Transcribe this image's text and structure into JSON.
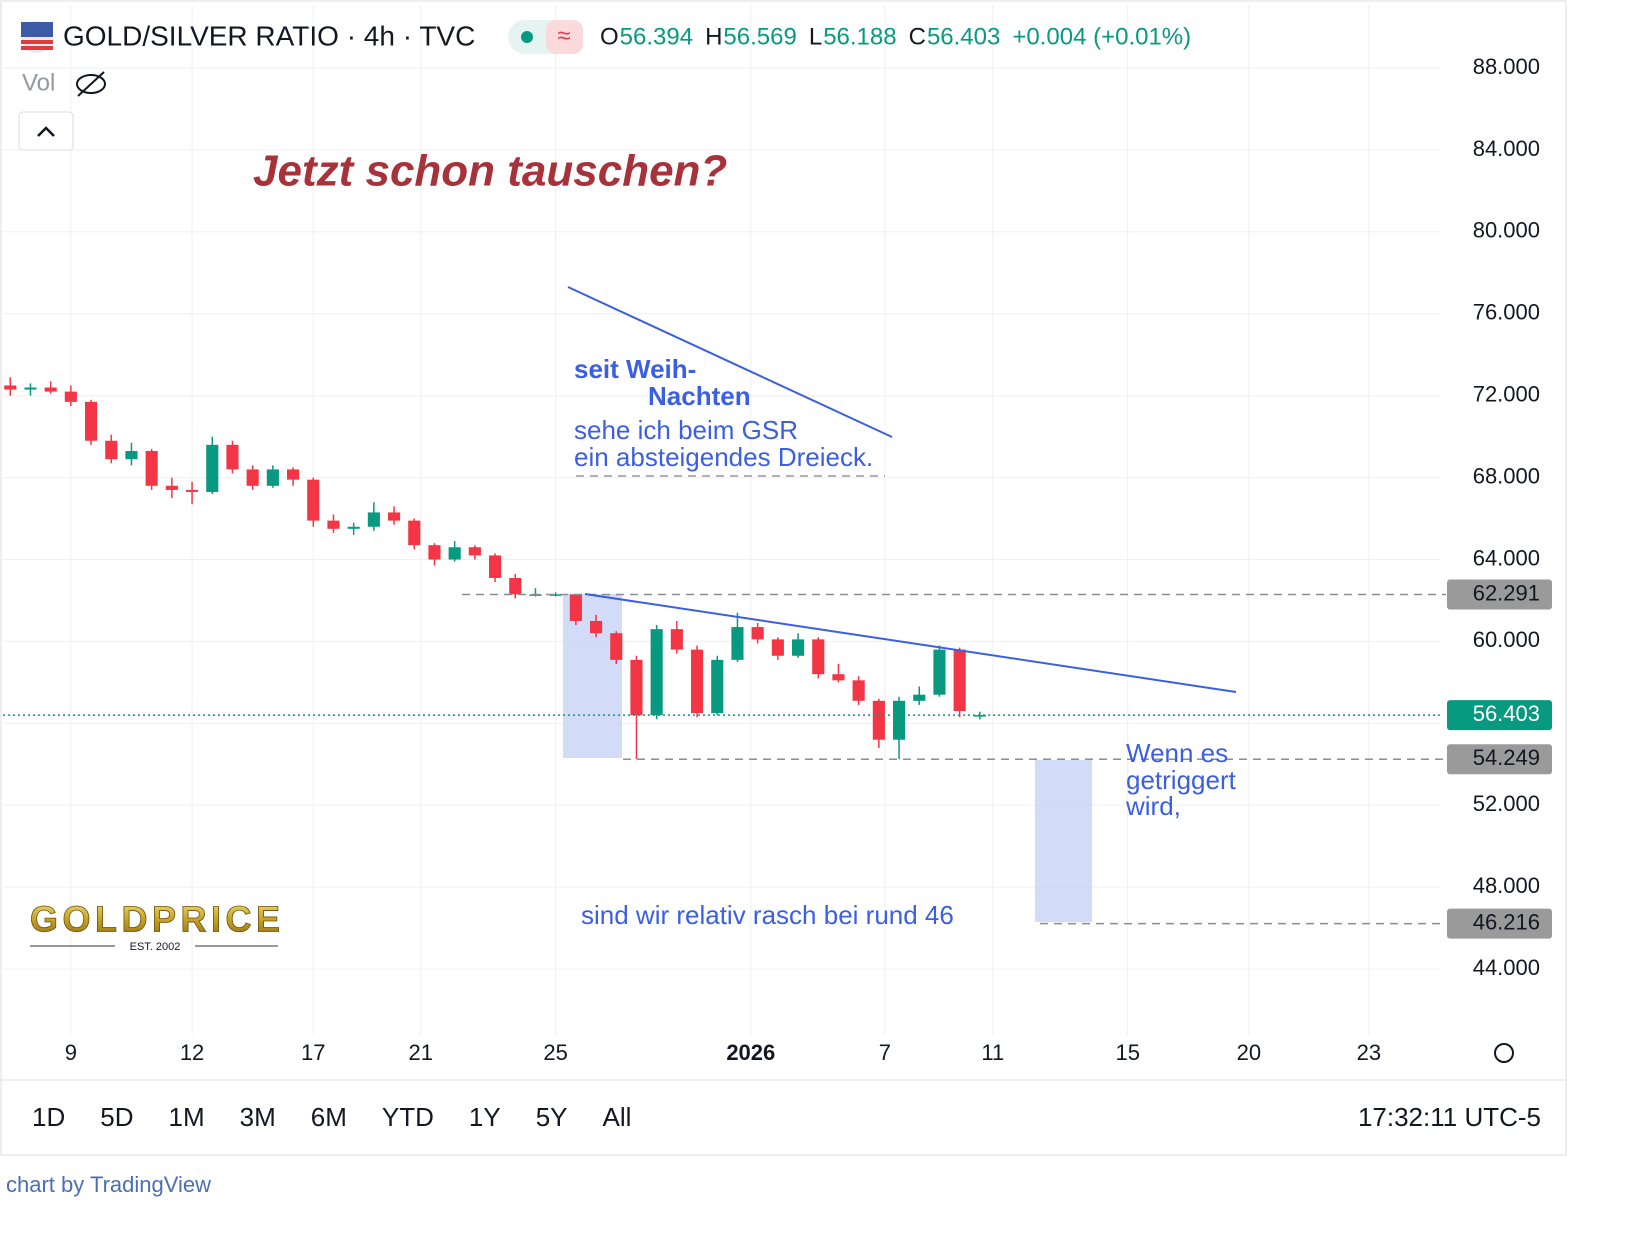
{
  "chart_data": {
    "type": "candlestick",
    "title": "GOLD/SILVER RATIO · 4h · TVC",
    "ohlc_labels": [
      "O",
      "H",
      "L",
      "C"
    ],
    "change": "+0.004 (+0.01%)",
    "volume_label": "Vol",
    "up_color": "#089981",
    "down_color": "#f23645",
    "x": [
      -1.5,
      -1,
      -0.5,
      0,
      0.5,
      1,
      1.5,
      2,
      2.5,
      3,
      3.5,
      4,
      4.5,
      5,
      5.5,
      6,
      6.5,
      7,
      7.5,
      8,
      8.5,
      9,
      9.5,
      10,
      10.5,
      11,
      11.5,
      12,
      12.5,
      13,
      13.5,
      14,
      14.5,
      15,
      15.5,
      16,
      16.5,
      17,
      17.5,
      18,
      18.5,
      19,
      19.5,
      20,
      20.5,
      21,
      21.5,
      22,
      22.5
    ],
    "open": [
      72.5,
      72.3,
      72.4,
      72.2,
      71.7,
      69.8,
      68.9,
      69.3,
      67.6,
      67.4,
      67.3,
      69.6,
      68.4,
      67.6,
      68.4,
      67.9,
      65.9,
      65.5,
      65.6,
      66.3,
      65.9,
      64.7,
      64.0,
      64.6,
      64.2,
      63.1,
      62.3,
      62.3,
      62.3,
      61.0,
      60.4,
      59.1,
      56.4,
      60.6,
      59.6,
      56.5,
      59.1,
      60.7,
      60.1,
      59.3,
      60.1,
      58.4,
      58.1,
      57.1,
      55.2,
      57.1,
      57.4,
      59.6,
      56.394
    ],
    "high": [
      72.9,
      72.6,
      72.7,
      72.5,
      71.8,
      70.1,
      69.7,
      69.4,
      68.0,
      67.8,
      70.0,
      69.8,
      68.6,
      68.6,
      68.5,
      68.0,
      66.2,
      65.8,
      66.8,
      66.6,
      66.0,
      64.8,
      64.9,
      64.7,
      64.3,
      63.3,
      62.6,
      62.4,
      62.3,
      61.3,
      60.5,
      59.3,
      60.8,
      61.0,
      59.8,
      59.3,
      61.4,
      60.9,
      60.2,
      60.4,
      60.2,
      58.9,
      58.3,
      57.2,
      57.3,
      57.8,
      59.8,
      59.7,
      56.569
    ],
    "low": [
      72.0,
      72.0,
      72.1,
      71.5,
      69.6,
      68.7,
      68.6,
      67.4,
      67.0,
      66.7,
      67.2,
      68.2,
      67.4,
      67.5,
      67.6,
      65.6,
      65.3,
      65.2,
      65.4,
      65.7,
      64.5,
      63.7,
      63.9,
      64.0,
      62.9,
      62.1,
      62.2,
      62.2,
      60.8,
      60.2,
      58.9,
      54.25,
      56.2,
      59.4,
      56.3,
      56.4,
      59.0,
      59.9,
      59.1,
      59.2,
      58.2,
      58.0,
      56.9,
      54.8,
      54.25,
      56.9,
      57.3,
      56.3,
      56.188
    ],
    "close": [
      72.3,
      72.4,
      72.2,
      71.7,
      69.8,
      68.9,
      69.3,
      67.6,
      67.4,
      67.3,
      69.6,
      68.4,
      67.6,
      68.4,
      67.9,
      65.9,
      65.5,
      65.6,
      66.3,
      65.9,
      64.7,
      64.0,
      64.6,
      64.2,
      63.1,
      62.3,
      62.3,
      62.3,
      61.0,
      60.4,
      59.1,
      56.4,
      60.6,
      59.6,
      56.5,
      59.1,
      60.7,
      60.1,
      59.3,
      60.1,
      58.4,
      58.1,
      57.1,
      55.2,
      57.1,
      57.4,
      59.6,
      56.6,
      56.403
    ],
    "levels": [
      62.291,
      54.249,
      46.216
    ],
    "xlim": [
      -1.68,
      33.89
    ],
    "xticks": [
      {
        "value": 0,
        "label": "9"
      },
      {
        "value": 3,
        "label": "12"
      },
      {
        "value": 6,
        "label": "17"
      },
      {
        "value": 8.66,
        "label": "21"
      },
      {
        "value": 12,
        "label": "25"
      },
      {
        "value": 16.83,
        "label": "2026"
      },
      {
        "value": 20.15,
        "label": "7"
      },
      {
        "value": 22.82,
        "label": "11"
      },
      {
        "value": 26.16,
        "label": "15"
      },
      {
        "value": 29.16,
        "label": "20"
      },
      {
        "value": 32.13,
        "label": "23"
      }
    ],
    "ylim": [
      40.78,
      91.08
    ],
    "yticks": [
      {
        "value": 44,
        "label": "44.000"
      },
      {
        "value": 48,
        "label": "48.000"
      },
      {
        "value": 52,
        "label": "52.000"
      },
      {
        "value": 56,
        "label": "56.000"
      },
      {
        "value": 60,
        "label": "60.000"
      },
      {
        "value": 64,
        "label": "64.000"
      },
      {
        "value": 68,
        "label": "68.000"
      },
      {
        "value": 72,
        "label": "72.000"
      },
      {
        "value": 76,
        "label": "76.000"
      },
      {
        "value": 80,
        "label": "80.000"
      },
      {
        "value": 84,
        "label": "84.000"
      },
      {
        "value": 88,
        "label": "88.000"
      }
    ],
    "grid": true,
    "annotations": [
      "Jetzt schon tauschen?",
      "seit Weih-",
      "Nachten",
      "sehe ich beim GSR",
      "ein absteigendes Dreieck.",
      "Wenn es",
      "getriggert",
      "wird,",
      "sind wir relativ rasch bei rund 46"
    ]
  },
  "logo": {
    "name": "GOLDPRICE",
    "est": "EST. 2002"
  },
  "toolbar": {
    "ranges": [
      "1D",
      "5D",
      "1M",
      "3M",
      "6M",
      "YTD",
      "1Y",
      "5Y",
      "All"
    ],
    "time": "17:32:11 UTC-5"
  },
  "footer": "chart by TradingView"
}
